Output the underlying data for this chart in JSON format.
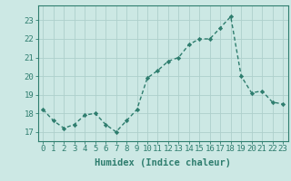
{
  "x": [
    0,
    1,
    2,
    3,
    4,
    5,
    6,
    7,
    8,
    9,
    10,
    11,
    12,
    13,
    14,
    15,
    16,
    17,
    18,
    19,
    20,
    21,
    22,
    23
  ],
  "y": [
    18.2,
    17.6,
    17.2,
    17.4,
    17.9,
    18.0,
    17.4,
    17.0,
    17.6,
    18.2,
    19.9,
    20.3,
    20.8,
    21.0,
    21.7,
    22.0,
    22.0,
    22.6,
    23.2,
    20.0,
    19.1,
    19.2,
    18.6,
    18.5
  ],
  "line_color": "#2e7d6e",
  "marker": "D",
  "marker_size": 2.2,
  "line_width": 1.0,
  "bg_color": "#cce8e4",
  "grid_color": "#aecfcb",
  "plot_bg_color": "#cce8e4",
  "xlabel": "Humidex (Indice chaleur)",
  "ylim": [
    16.5,
    23.8
  ],
  "xlim": [
    -0.5,
    23.5
  ],
  "yticks": [
    17,
    18,
    19,
    20,
    21,
    22,
    23
  ],
  "xticks": [
    0,
    1,
    2,
    3,
    4,
    5,
    6,
    7,
    8,
    9,
    10,
    11,
    12,
    13,
    14,
    15,
    16,
    17,
    18,
    19,
    20,
    21,
    22,
    23
  ],
  "tick_label_fontsize": 6.5,
  "xlabel_fontsize": 7.5,
  "spine_color": "#2e7d6e",
  "tick_color": "#2e7d6e"
}
